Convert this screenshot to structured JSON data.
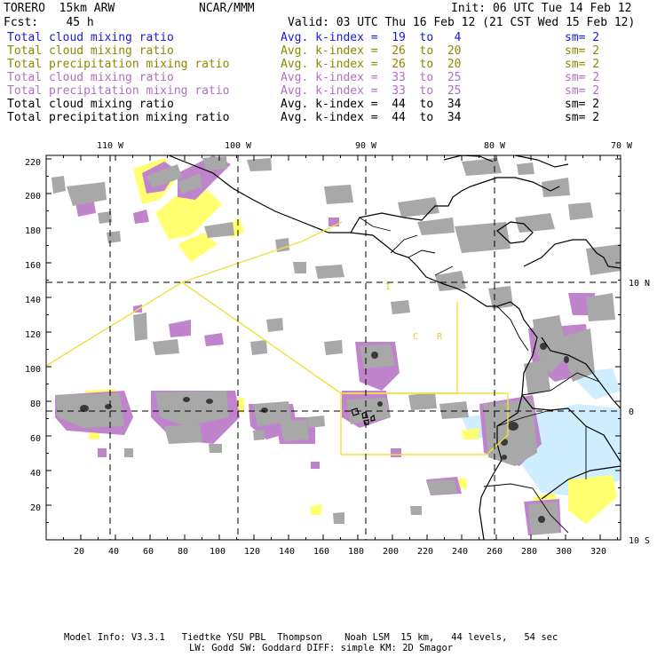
{
  "header": {
    "model": "TORERO  15km ARW",
    "org": "NCAR/MMM",
    "init": "Init: 06 UTC Tue 14 Feb 12",
    "fcst": "Fcst:    45 h",
    "valid": "Valid: 03 UTC Thu 16 Feb 12 (21 CST Wed 15 Feb 12)"
  },
  "legend": [
    {
      "name": "Total cloud mixing ratio",
      "kidx": "Avg. k-index =  19  to   4",
      "sm": "sm= 2",
      "color": "#1a1ad6"
    },
    {
      "name": "Total cloud mixing ratio",
      "kidx": "Avg. k-index =  26  to  20",
      "sm": "sm= 2",
      "color": "#8a8a00"
    },
    {
      "name": "Total precipitation mixing ratio",
      "kidx": "Avg. k-index =  26  to  20",
      "sm": "sm= 2",
      "color": "#8a8a00"
    },
    {
      "name": "Total cloud mixing ratio",
      "kidx": "Avg. k-index =  33  to  25",
      "sm": "sm= 2",
      "color": "#b070c0"
    },
    {
      "name": "Total precipitation mixing ratio",
      "kidx": "Avg. k-index =  33  to  25",
      "sm": "sm= 2",
      "color": "#b070c0"
    },
    {
      "name": "Total cloud mixing ratio",
      "kidx": "Avg. k-index =  44  to  34",
      "sm": "sm= 2",
      "color": "#000000"
    },
    {
      "name": "Total precipitation mixing ratio",
      "kidx": "Avg. k-index =  44  to  34",
      "sm": "sm= 2",
      "color": "#000000"
    }
  ],
  "map": {
    "y_ticks": [
      "220",
      "200",
      "180",
      "160",
      "140",
      "120",
      "100",
      "80",
      "60",
      "40",
      "20"
    ],
    "x_ticks": [
      "20",
      "40",
      "60",
      "80",
      "100",
      "120",
      "140",
      "160",
      "180",
      "200",
      "220",
      "240",
      "260",
      "280",
      "300",
      "320"
    ],
    "lon_labels": [
      "110 W",
      "100 W",
      "90 W",
      "80 W",
      "70 W"
    ],
    "lat_labels": [
      "10 N",
      "0",
      "10 S"
    ],
    "region_labels": [
      "I",
      "C",
      "R"
    ]
  },
  "footer": {
    "line1": "Model Info: V3.3.1   Tiedtke YSU PBL  Thompson    Noah LSM  15 km,   44 levels,   54 sec",
    "line2": "LW: Godd SW: Goddard DIFF: simple KM: 2D Smagor"
  },
  "colors": {
    "grey": "#a8a8a8",
    "purple": "#c084cc",
    "yellow": "#ffff70",
    "lightblue": "#cfeeff",
    "box": "#f0e040"
  }
}
